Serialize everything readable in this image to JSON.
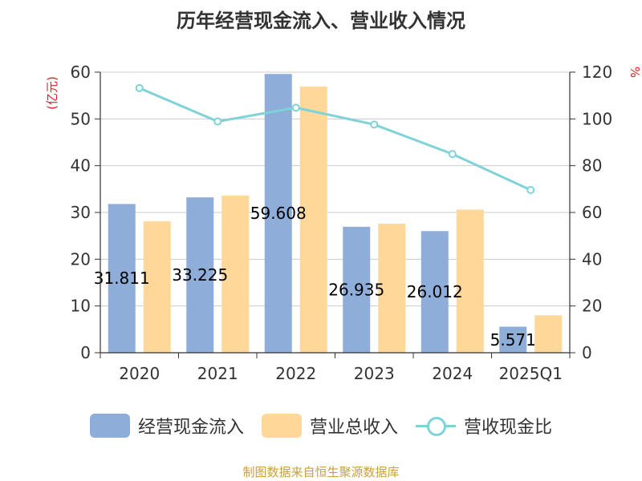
{
  "chart_data": {
    "type": "bar",
    "title": "历年经营现金流入、营业收入情况",
    "categories": [
      "2020",
      "2021",
      "2022",
      "2023",
      "2024",
      "2025Q1"
    ],
    "left_axis": {
      "unit": "(亿元)",
      "ylim": [
        0,
        60
      ],
      "ticks": [
        0,
        10,
        20,
        30,
        40,
        50,
        60
      ]
    },
    "right_axis": {
      "unit": "%",
      "ylim": [
        0,
        120
      ],
      "ticks": [
        0,
        20,
        40,
        60,
        80,
        100,
        120
      ]
    },
    "series": [
      {
        "name": "经营现金流入",
        "type": "bar",
        "axis": "left",
        "color": "#8eadd9",
        "values": [
          31.811,
          33.225,
          59.608,
          26.935,
          26.012,
          5.571
        ],
        "labels": [
          "31.811",
          "33.225",
          "59.608",
          "26.935",
          "26.012",
          "5.571"
        ]
      },
      {
        "name": "营业总收入",
        "type": "bar",
        "axis": "left",
        "color": "#ffd899",
        "values": [
          28.1,
          33.6,
          56.9,
          27.6,
          30.6,
          8.0
        ]
      },
      {
        "name": "营收现金比",
        "type": "line",
        "axis": "right",
        "color": "#7fd3d8",
        "values": [
          113.2,
          98.9,
          104.8,
          97.6,
          85.0,
          69.6
        ]
      }
    ],
    "grid": true,
    "legend_position": "bottom"
  },
  "source": "制图数据来自恒生聚源数据库"
}
